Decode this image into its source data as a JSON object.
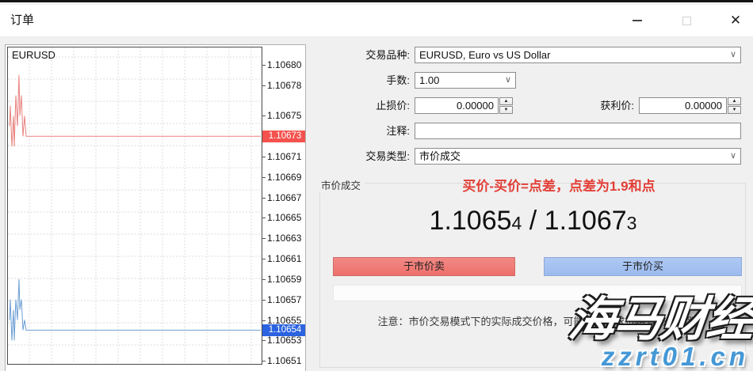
{
  "window": {
    "title": "订单",
    "close_glyph": "✕"
  },
  "chart_data": {
    "type": "line",
    "symbol": "EURUSD",
    "ylim": [
      1.106507,
      1.106817
    ],
    "grid": true,
    "legend_position": "none",
    "y_ticks": [
      "1.10680",
      "1.10678",
      "1.10675",
      "1.10673",
      "1.10671",
      "1.10669",
      "1.10667",
      "1.10665",
      "1.10663",
      "1.10661",
      "1.10659",
      "1.10657",
      "1.10655",
      "1.10653",
      "1.10651"
    ],
    "badges": {
      "ask": {
        "value": "1.10673",
        "color": "#f4524e"
      },
      "bid": {
        "value": "1.10654",
        "color": "#2b63e0"
      }
    },
    "series": [
      {
        "name": "ask",
        "color": "#e8827e",
        "points": [
          [
            2,
            1.10674
          ],
          [
            3,
            1.10676
          ],
          [
            5,
            1.10672
          ],
          [
            7,
            1.10675
          ],
          [
            8,
            1.10672
          ],
          [
            10,
            1.10677
          ],
          [
            12,
            1.10674
          ],
          [
            14,
            1.10679
          ],
          [
            15,
            1.10675
          ],
          [
            17,
            1.10677
          ],
          [
            19,
            1.10673
          ],
          [
            21,
            1.10675
          ],
          [
            23,
            1.10673
          ],
          [
            319,
            1.10673
          ]
        ]
      },
      {
        "name": "bid",
        "color": "#6d9ed4",
        "points": [
          [
            2,
            1.10655
          ],
          [
            3,
            1.10657
          ],
          [
            5,
            1.10653
          ],
          [
            7,
            1.10656
          ],
          [
            8,
            1.10653
          ],
          [
            10,
            1.10657
          ],
          [
            12,
            1.10655
          ],
          [
            14,
            1.10659
          ],
          [
            15,
            1.10656
          ],
          [
            17,
            1.10657
          ],
          [
            19,
            1.10654
          ],
          [
            21,
            1.10655
          ],
          [
            23,
            1.10654
          ],
          [
            319,
            1.10654
          ]
        ]
      }
    ]
  },
  "form": {
    "symbol_label": "交易品种:",
    "symbol_value": "EURUSD, Euro vs US Dollar",
    "volume_label": "手数:",
    "volume_value": "1.00",
    "stoploss_label": "止损价:",
    "stoploss_value": "0.00000",
    "takeprofit_label": "获利价:",
    "takeprofit_value": "0.00000",
    "comment_label": "注释:",
    "comment_value": "",
    "type_label": "交易类型:",
    "type_value": "市价成交"
  },
  "group": {
    "title": "市价成交",
    "annotation": "买价-买价=点差，点差为1.9和点"
  },
  "quote": {
    "bid_main": "1.1065",
    "bid_small": "4",
    "separator": " / ",
    "ask_main": "1.1067",
    "ask_small": "3"
  },
  "buttons": {
    "sell_label": "于市价卖",
    "buy_label": "于市价买"
  },
  "note": "注意：市价交易模式下的实际成交价格，可能会和请求价格有一定差距",
  "watermark": {
    "line1": "海马财经",
    "line2": "zzrt01.cn"
  }
}
